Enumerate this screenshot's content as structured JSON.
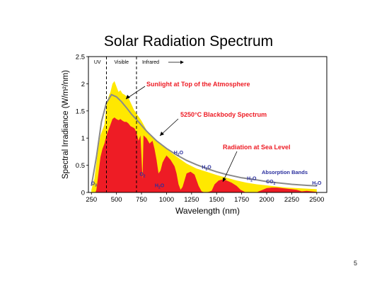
{
  "slide": {
    "page_number": "5"
  },
  "chart_data": {
    "type": "area",
    "title": "Solar Radiation Spectrum",
    "xlabel": "Wavelength (nm)",
    "ylabel": "Spectral Irradiance (W/m²/nm)",
    "xlim": [
      220,
      2600
    ],
    "ylim": [
      0,
      2.5
    ],
    "x_ticks": [
      250,
      500,
      750,
      1000,
      1250,
      1500,
      1750,
      2000,
      2250,
      2500
    ],
    "y_ticks": [
      0,
      0.5,
      1,
      1.5,
      2,
      2.5
    ],
    "y_tick_labels": [
      "0",
      "0.5",
      "1",
      "1.5",
      "2",
      "2.5"
    ],
    "grid": false,
    "regions": {
      "boundaries": [
        400,
        700
      ],
      "labels": [
        "UV",
        "Visible",
        "Infrared"
      ]
    },
    "series": [
      {
        "name": "Sunlight at Top of the Atmosphere",
        "color": "#ffe800",
        "x": [
          250,
          280,
          300,
          320,
          340,
          360,
          380,
          400,
          420,
          440,
          460,
          480,
          500,
          520,
          540,
          560,
          580,
          600,
          625,
          650,
          675,
          700,
          750,
          800,
          850,
          900,
          950,
          1000,
          1100,
          1200,
          1300,
          1400,
          1500,
          1600,
          1700,
          1800,
          1900,
          2000,
          2100,
          2200,
          2300,
          2400,
          2500
        ],
        "values": [
          0.05,
          0.25,
          0.55,
          0.85,
          1.05,
          1.15,
          1.25,
          1.6,
          1.75,
          1.85,
          2.0,
          2.05,
          1.95,
          1.85,
          1.88,
          1.82,
          1.8,
          1.77,
          1.72,
          1.62,
          1.52,
          1.45,
          1.32,
          1.15,
          1.05,
          0.95,
          0.87,
          0.8,
          0.66,
          0.53,
          0.44,
          0.38,
          0.32,
          0.27,
          0.22,
          0.18,
          0.15,
          0.13,
          0.11,
          0.09,
          0.08,
          0.07,
          0.06
        ]
      },
      {
        "name": "5250°C Blackbody Spectrum",
        "color": "#8a8a8a",
        "x": [
          250,
          300,
          350,
          400,
          450,
          500,
          550,
          600,
          650,
          700,
          800,
          900,
          1000,
          1100,
          1200,
          1300,
          1400,
          1500,
          1600,
          1750,
          1900,
          2000,
          2100,
          2250,
          2400,
          2500
        ],
        "values": [
          0.12,
          0.65,
          1.3,
          1.65,
          1.8,
          1.76,
          1.67,
          1.56,
          1.44,
          1.34,
          1.13,
          0.95,
          0.81,
          0.69,
          0.59,
          0.51,
          0.44,
          0.38,
          0.33,
          0.27,
          0.23,
          0.2,
          0.18,
          0.15,
          0.13,
          0.12
        ]
      },
      {
        "name": "Radiation at Sea Level",
        "color": "#ee1c25",
        "x": [
          290,
          300,
          320,
          340,
          360,
          380,
          400,
          420,
          440,
          460,
          480,
          500,
          520,
          540,
          560,
          580,
          600,
          620,
          640,
          660,
          680,
          700,
          720,
          740,
          760,
          770,
          800,
          830,
          860,
          880,
          900,
          920,
          940,
          960,
          980,
          1000,
          1040,
          1080,
          1100,
          1120,
          1140,
          1160,
          1200,
          1240,
          1280,
          1320,
          1350,
          1380,
          1420,
          1450,
          1480,
          1520,
          1560,
          1600,
          1650,
          1700,
          1740,
          1780,
          1800,
          1820,
          1860,
          1900,
          1920,
          1960,
          2000,
          2050,
          2100,
          2150,
          2200,
          2250,
          2300,
          2350,
          2400,
          2450,
          2500
        ],
        "values": [
          0.0,
          0.05,
          0.35,
          0.65,
          0.8,
          0.9,
          1.05,
          1.15,
          1.25,
          1.35,
          1.38,
          1.35,
          1.33,
          1.35,
          1.32,
          1.3,
          1.3,
          1.27,
          1.22,
          1.2,
          1.18,
          1.1,
          0.95,
          1.05,
          0.25,
          1.05,
          1.0,
          0.9,
          0.95,
          0.8,
          0.6,
          0.35,
          0.4,
          0.55,
          0.62,
          0.68,
          0.6,
          0.48,
          0.35,
          0.15,
          0.05,
          0.1,
          0.35,
          0.38,
          0.33,
          0.12,
          0.02,
          0.0,
          0.01,
          0.03,
          0.15,
          0.22,
          0.24,
          0.22,
          0.18,
          0.12,
          0.05,
          0.01,
          0.0,
          0.0,
          0.0,
          0.0,
          0.02,
          0.05,
          0.08,
          0.09,
          0.09,
          0.08,
          0.07,
          0.06,
          0.05,
          0.02,
          0.03,
          0.02,
          0.01
        ]
      }
    ],
    "annotations": [
      {
        "text": "Sunlight at Top of the Atmosphere",
        "color": "#ee1c25",
        "weight": "bold"
      },
      {
        "text": "5250°C Blackbody Spectrum",
        "color": "#ee1c25",
        "weight": "bold"
      },
      {
        "text": "Radiation at Sea Level",
        "color": "#ee1c25",
        "weight": "bold"
      },
      {
        "text": "Absorption Bands",
        "color": "#2a2f9e",
        "weight": "bold"
      }
    ],
    "absorption_labels": [
      {
        "mol": "O",
        "sub": "3",
        "x": 275,
        "y": 0.11
      },
      {
        "mol": "O",
        "sub": "2",
        "x": 760,
        "y": 0.28
      },
      {
        "mol": "H",
        "sub": "2",
        "after": "O",
        "x": 930,
        "y": 0.07
      },
      {
        "mol": "H",
        "sub": "2",
        "after": "O",
        "x": 1120,
        "y": 0.68
      },
      {
        "mol": "H",
        "sub": "2",
        "after": "O",
        "x": 1400,
        "y": 0.41
      },
      {
        "mol": "H",
        "sub": "2",
        "after": "O",
        "x": 1850,
        "y": 0.2
      },
      {
        "mol": "CO",
        "sub": "2",
        "x": 2040,
        "y": 0.14
      },
      {
        "mol": "H",
        "sub": "2",
        "after": "O",
        "x": 2500,
        "y": 0.12
      }
    ]
  }
}
